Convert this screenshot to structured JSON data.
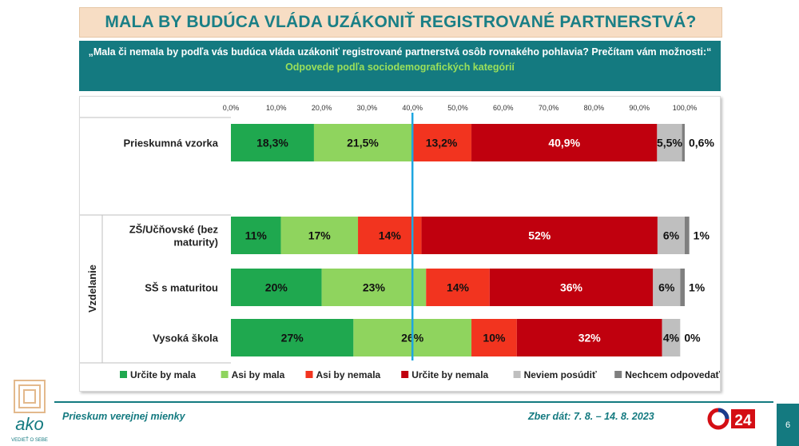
{
  "header": {
    "title": "MALA BY BUDÚCA VLÁDA UZÁKONIŤ REGISTROVANÉ PARTNERSTVÁ?",
    "question": "„Mala či nemala by podľa vás budúca vláda uzákoniť registrované partnerstvá osôb rovnakého pohlavia? Prečítam vám možnosti:“",
    "subtitle": "Odpovede podľa sociodemografických kategórií"
  },
  "chart_data": {
    "type": "bar",
    "orientation": "horizontal",
    "stacked": true,
    "xlim": [
      0,
      100
    ],
    "x_ticks": [
      "0,0%",
      "10,0%",
      "20,0%",
      "30,0%",
      "40,0%",
      "50,0%",
      "60,0%",
      "70,0%",
      "80,0%",
      "90,0%",
      "100,0%"
    ],
    "group_label": "Vzdelanie",
    "categories": [
      "Prieskumná vzorka",
      "ZŠ/Učňovské (bez maturity)",
      "SŠ s maturitou",
      "Vysoká škola"
    ],
    "category_lines": [
      [
        "Prieskumná vzorka"
      ],
      [
        "ZŠ/Učňovské (bez",
        "maturity)"
      ],
      [
        "SŠ s maturitou"
      ],
      [
        "Vysoká škola"
      ]
    ],
    "series": [
      {
        "name": "Určite by mala",
        "color": "#1fa84f",
        "values": [
          18.3,
          11,
          20,
          27
        ],
        "labels": [
          "18,3%",
          "11%",
          "20%",
          "27%"
        ]
      },
      {
        "name": "Asi by mala",
        "color": "#8fd45e",
        "values": [
          21.5,
          17,
          23,
          26
        ],
        "labels": [
          "21,5%",
          "17%",
          "23%",
          "26%"
        ]
      },
      {
        "name": "Asi by nemala",
        "color": "#f2341f",
        "values": [
          13.2,
          14,
          14,
          10
        ],
        "labels": [
          "13,2%",
          "14%",
          "14%",
          "10%"
        ]
      },
      {
        "name": "Určite by nemala",
        "color": "#c0000e",
        "values": [
          40.9,
          52,
          36,
          32
        ],
        "labels": [
          "40,9%",
          "52%",
          "36%",
          "32%"
        ]
      },
      {
        "name": "Neviem posúdiť",
        "color": "#bfbfbf",
        "values": [
          5.5,
          6,
          6,
          4
        ],
        "labels": [
          "5,5%",
          "6%",
          "6%",
          "4%"
        ]
      },
      {
        "name": "Nechcem odpovedať",
        "color": "#7f7f7f",
        "values": [
          0.6,
          1,
          1,
          0
        ],
        "labels": [
          "0,6%",
          "1%",
          "1%",
          "0%"
        ]
      }
    ],
    "reference_line": {
      "x": 40,
      "color": "#1ea6e0"
    },
    "legend_position": "bottom"
  },
  "footer": {
    "left": "Prieskum verejnej mienky",
    "right": "Zber dát: 7. 8. – 14. 8. 2023",
    "page": "6",
    "logo_text": "ako",
    "logo_subtext": "VEDIEŤ O SEBE",
    "tv_logo_text": "24"
  }
}
